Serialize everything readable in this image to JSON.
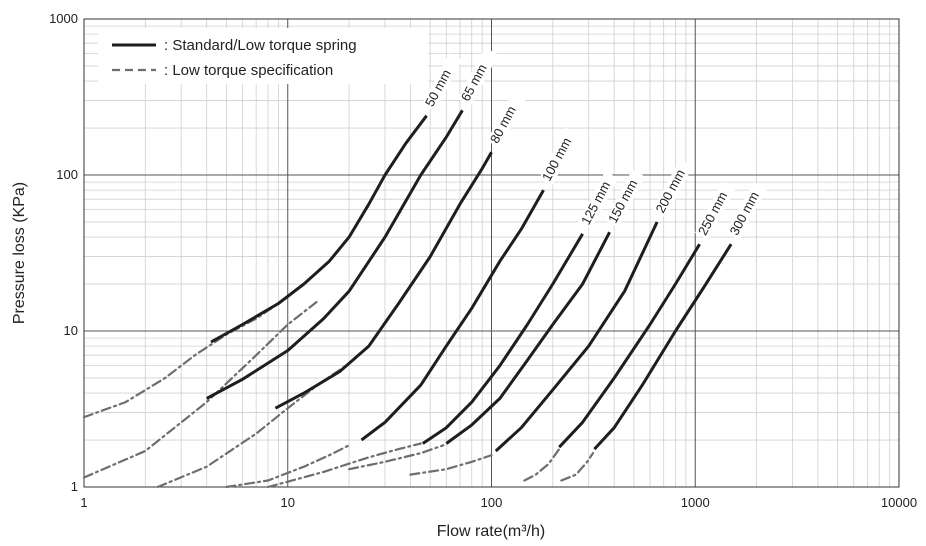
{
  "chart_data": {
    "type": "line",
    "xlabel": "Flow rate(m³/h)",
    "ylabel": "Pressure loss (KPa)",
    "xscale": "log",
    "yscale": "log",
    "xlim": [
      1,
      10000
    ],
    "ylim": [
      1,
      1000
    ],
    "x_ticks": [
      "1",
      "10",
      "100",
      "1000",
      "10000"
    ],
    "y_ticks": [
      "1",
      "10",
      "100",
      "1000"
    ],
    "grid": true,
    "legend": {
      "placement": "top-left",
      "entries": [
        {
          "text": ": Standard/Low torque spring",
          "style": "solid"
        },
        {
          "text": ": Low torque specification",
          "style": "dashed"
        }
      ]
    },
    "colors": {
      "solid": "#1e1e1e",
      "dashed": "#6e6e6e",
      "grid_major": "#555555",
      "grid_minor": "#d0d0d0"
    },
    "series": [
      {
        "name": "50 mm",
        "solid": [
          [
            4.2,
            8.5
          ],
          [
            6,
            11
          ],
          [
            9,
            15
          ],
          [
            12,
            20
          ],
          [
            16,
            28
          ],
          [
            20,
            40
          ],
          [
            25,
            65
          ],
          [
            30,
            100
          ],
          [
            38,
            160
          ],
          [
            48,
            240
          ]
        ],
        "dashed": [
          [
            1,
            2.8
          ],
          [
            1.6,
            3.5
          ],
          [
            2.5,
            5
          ],
          [
            3.5,
            7
          ],
          [
            5,
            9.5
          ],
          [
            7,
            12
          ],
          [
            9,
            15
          ]
        ]
      },
      {
        "name": "65 mm",
        "solid": [
          [
            4,
            3.7
          ],
          [
            6,
            4.9
          ],
          [
            10,
            7.5
          ],
          [
            15,
            12
          ],
          [
            20,
            18
          ],
          [
            30,
            40
          ],
          [
            45,
            100
          ],
          [
            60,
            175
          ],
          [
            72,
            260
          ]
        ],
        "dashed": [
          [
            1,
            1.15
          ],
          [
            2,
            1.7
          ],
          [
            4,
            3.5
          ],
          [
            7,
            7
          ],
          [
            10,
            11
          ],
          [
            14,
            15.5
          ]
        ]
      },
      {
        "name": "80 mm",
        "solid": [
          [
            8.7,
            3.2
          ],
          [
            12,
            4
          ],
          [
            18,
            5.5
          ],
          [
            25,
            8
          ],
          [
            35,
            15
          ],
          [
            50,
            30
          ],
          [
            70,
            65
          ],
          [
            90,
            110
          ],
          [
            100,
            140
          ]
        ],
        "dashed": [
          [
            2.3,
            1
          ],
          [
            4,
            1.35
          ],
          [
            7,
            2.2
          ],
          [
            10,
            3.2
          ],
          [
            14,
            4.5
          ],
          [
            20,
            6.2
          ]
        ]
      },
      {
        "name": "100 mm",
        "solid": [
          [
            23,
            2
          ],
          [
            30,
            2.6
          ],
          [
            45,
            4.5
          ],
          [
            60,
            8
          ],
          [
            80,
            14
          ],
          [
            110,
            28
          ],
          [
            140,
            45
          ],
          [
            180,
            80
          ]
        ],
        "dashed": [
          [
            5,
            0.95
          ],
          [
            8,
            1.1
          ],
          [
            12,
            1.35
          ],
          [
            16,
            1.6
          ],
          [
            20,
            1.85
          ]
        ]
      },
      {
        "name": "125 mm",
        "solid": [
          [
            46,
            1.9
          ],
          [
            60,
            2.4
          ],
          [
            80,
            3.5
          ],
          [
            110,
            6
          ],
          [
            150,
            11
          ],
          [
            200,
            20
          ],
          [
            280,
            42
          ]
        ],
        "dashed": [
          [
            8,
            0.95
          ],
          [
            15,
            1.25
          ],
          [
            25,
            1.55
          ],
          [
            35,
            1.75
          ],
          [
            45,
            1.9
          ]
        ]
      },
      {
        "name": "150 mm",
        "solid": [
          [
            60,
            1.9
          ],
          [
            80,
            2.5
          ],
          [
            110,
            3.7
          ],
          [
            150,
            6.5
          ],
          [
            200,
            11
          ],
          [
            280,
            20
          ],
          [
            380,
            43
          ]
        ],
        "dashed": [
          [
            20,
            1.3
          ],
          [
            30,
            1.45
          ],
          [
            45,
            1.65
          ],
          [
            58,
            1.85
          ]
        ]
      },
      {
        "name": "200 mm",
        "solid": [
          [
            105,
            1.7
          ],
          [
            140,
            2.4
          ],
          [
            200,
            4.2
          ],
          [
            300,
            8
          ],
          [
            450,
            18
          ],
          [
            650,
            50
          ]
        ],
        "dashed": [
          [
            40,
            1.2
          ],
          [
            60,
            1.3
          ],
          [
            80,
            1.45
          ],
          [
            100,
            1.6
          ]
        ]
      },
      {
        "name": "250 mm",
        "solid": [
          [
            215,
            1.8
          ],
          [
            280,
            2.6
          ],
          [
            400,
            5
          ],
          [
            600,
            11
          ],
          [
            800,
            20
          ],
          [
            1050,
            36
          ]
        ],
        "dashed": [
          [
            145,
            1.1
          ],
          [
            165,
            1.2
          ],
          [
            190,
            1.4
          ],
          [
            215,
            1.75
          ]
        ]
      },
      {
        "name": "300 mm",
        "solid": [
          [
            320,
            1.75
          ],
          [
            400,
            2.4
          ],
          [
            550,
            4.5
          ],
          [
            800,
            10
          ],
          [
            1100,
            19
          ],
          [
            1500,
            36
          ]
        ],
        "dashed": [
          [
            220,
            1.1
          ],
          [
            260,
            1.2
          ],
          [
            295,
            1.45
          ],
          [
            315,
            1.65
          ]
        ]
      }
    ]
  }
}
